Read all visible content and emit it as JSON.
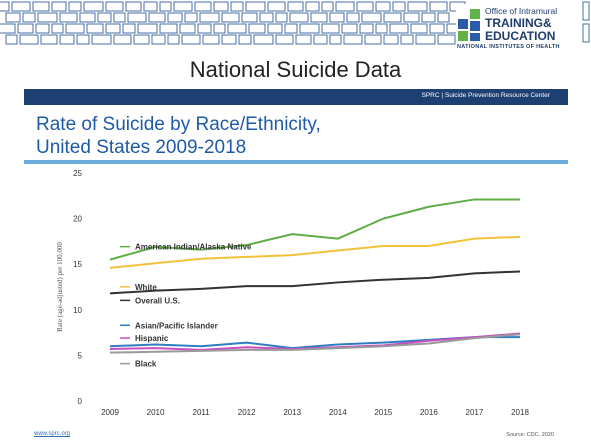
{
  "header": {
    "logo_top": "Office of Intramural",
    "logo_training": "TRAINING&",
    "logo_education": "EDUCATION",
    "logo_nih": "NATIONAL INSTITUTES OF HEALTH"
  },
  "slide_title": "National Suicide Data",
  "content": {
    "spire_label": "SPRC  |  Suicide Prevention Resource Center",
    "chart_title_line1": "Rate of Suicide by Race/Ethnicity,",
    "chart_title_line2": "United States 2009-2018",
    "footer_left": "www.sprc.org",
    "footer_right": "Source: CDC, 2020"
  },
  "colors": {
    "navy": "#1d3f72",
    "title_blue": "#1e5aa8",
    "rule_blue": "#6cacdb"
  },
  "chart_data": {
    "type": "line",
    "title": "Rate of Suicide by Race/Ethnicity, United States 2009-2018",
    "ylabel": "Rate (age-adjusted) per 100,000",
    "xlabel": "",
    "x": [
      "2009",
      "2010",
      "2011",
      "2012",
      "2013",
      "2014",
      "2015",
      "2016",
      "2017",
      "2018"
    ],
    "ylim": [
      0,
      25
    ],
    "yticks": [
      0,
      5,
      10,
      15,
      20,
      25
    ],
    "grid": false,
    "series": [
      {
        "name": "American Indian/Alaska Native",
        "color": "#5fad46",
        "values": [
          15.5,
          16.9,
          16.6,
          17.1,
          18.3,
          17.8,
          20.0,
          21.3,
          22.1,
          22.1
        ]
      },
      {
        "name": "White",
        "color": "#f2c13a",
        "values": [
          14.6,
          15.1,
          15.6,
          15.8,
          16.0,
          16.5,
          17.0,
          17.0,
          17.8,
          18.0
        ]
      },
      {
        "name": "Overall U.S.",
        "color": "#333333",
        "values": [
          11.8,
          12.1,
          12.3,
          12.6,
          12.6,
          13.0,
          13.3,
          13.5,
          14.0,
          14.2
        ]
      },
      {
        "name": "Asian/Pacific Islander",
        "color": "#2f7ec1",
        "values": [
          6.0,
          6.2,
          6.0,
          6.4,
          5.8,
          6.2,
          6.4,
          6.7,
          7.0,
          7.0
        ]
      },
      {
        "name": "Hispanic",
        "color": "#c94fc0",
        "values": [
          5.7,
          5.8,
          5.6,
          5.9,
          5.7,
          5.9,
          6.1,
          6.6,
          7.0,
          7.4
        ]
      },
      {
        "name": "Black",
        "color": "#9a9a9a",
        "values": [
          5.3,
          5.4,
          5.5,
          5.6,
          5.6,
          5.8,
          6.0,
          6.3,
          6.9,
          7.3
        ]
      }
    ]
  }
}
